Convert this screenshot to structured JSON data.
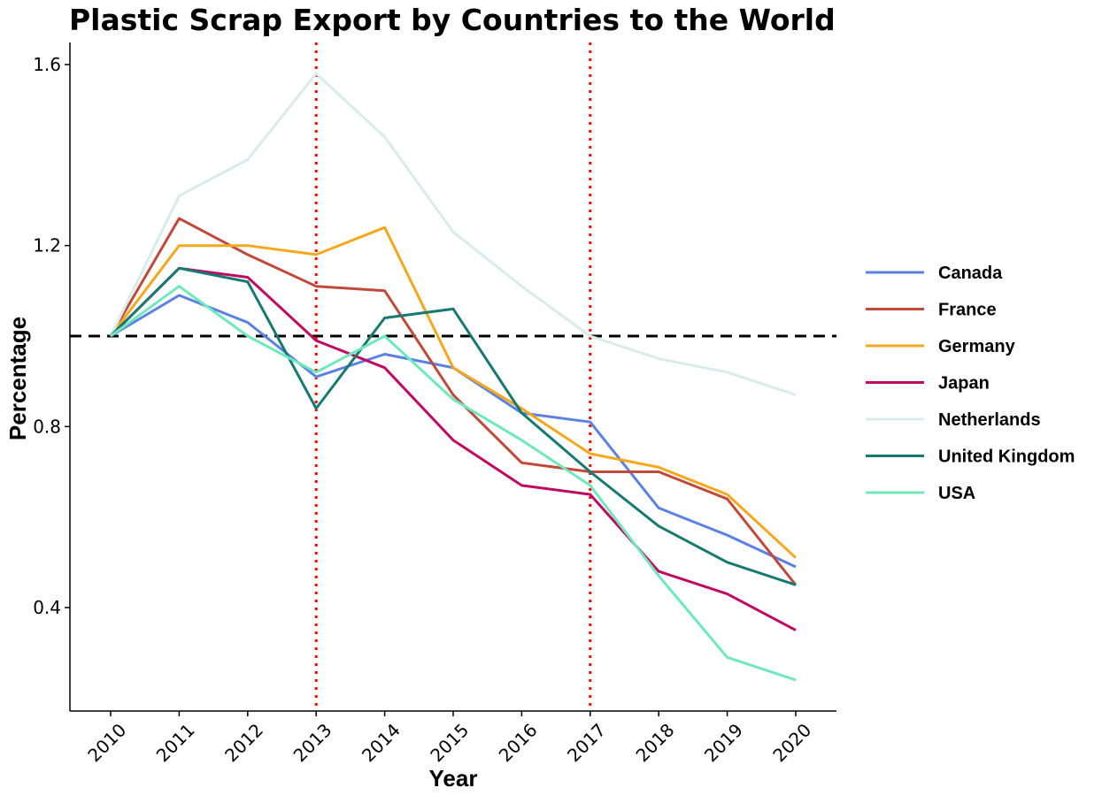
{
  "chart_data": {
    "type": "line",
    "title": "Plastic Scrap Export by Countries to the World",
    "xlabel": "Year",
    "ylabel": "Percentage",
    "categories": [
      "2010",
      "2011",
      "2012",
      "2013",
      "2014",
      "2015",
      "2016",
      "2017",
      "2018",
      "2019",
      "2020"
    ],
    "ylim": [
      0.175,
      1.635
    ],
    "yticks": [
      0.4,
      0.8,
      1.2,
      1.6
    ],
    "ytick_labels": [
      "0.4",
      "0.8",
      "1.2",
      "1.6"
    ],
    "grid": false,
    "legend_position": "right",
    "reference_lines": {
      "horizontal": {
        "y": 1.0,
        "style": "dashed",
        "color": "#000000"
      },
      "vertical": [
        {
          "x": "2013",
          "style": "dotted",
          "color": "#ff0000"
        },
        {
          "x": "2017",
          "style": "dotted",
          "color": "#ff0000"
        }
      ]
    },
    "series": [
      {
        "name": "Canada",
        "color": "#5b82e2",
        "values": [
          1.0,
          1.09,
          1.03,
          0.91,
          0.96,
          0.93,
          0.83,
          0.81,
          0.62,
          0.56,
          0.49
        ]
      },
      {
        "name": "France",
        "color": "#c0493a",
        "values": [
          1.0,
          1.26,
          1.18,
          1.11,
          1.1,
          0.87,
          0.72,
          0.7,
          0.7,
          0.64,
          0.45
        ]
      },
      {
        "name": "Germany",
        "color": "#f5a81e",
        "values": [
          1.0,
          1.2,
          1.2,
          1.18,
          1.24,
          0.93,
          0.84,
          0.74,
          0.71,
          0.65,
          0.51
        ]
      },
      {
        "name": "Japan",
        "color": "#c00a62",
        "values": [
          1.0,
          1.15,
          1.13,
          0.99,
          0.93,
          0.77,
          0.67,
          0.65,
          0.48,
          0.43,
          0.35
        ]
      },
      {
        "name": "Netherlands",
        "color": "#d9ecea",
        "values": [
          1.0,
          1.31,
          1.39,
          1.58,
          1.44,
          1.23,
          1.11,
          1.0,
          0.95,
          0.92,
          0.87
        ]
      },
      {
        "name": "United Kingdom",
        "color": "#167a73",
        "values": [
          1.0,
          1.15,
          1.12,
          0.84,
          1.04,
          1.06,
          0.83,
          0.7,
          0.58,
          0.5,
          0.45
        ]
      },
      {
        "name": "USA",
        "color": "#6ee8bc",
        "values": [
          1.0,
          1.11,
          1.0,
          0.92,
          1.0,
          0.86,
          0.77,
          0.67,
          0.47,
          0.29,
          0.24
        ]
      }
    ]
  }
}
